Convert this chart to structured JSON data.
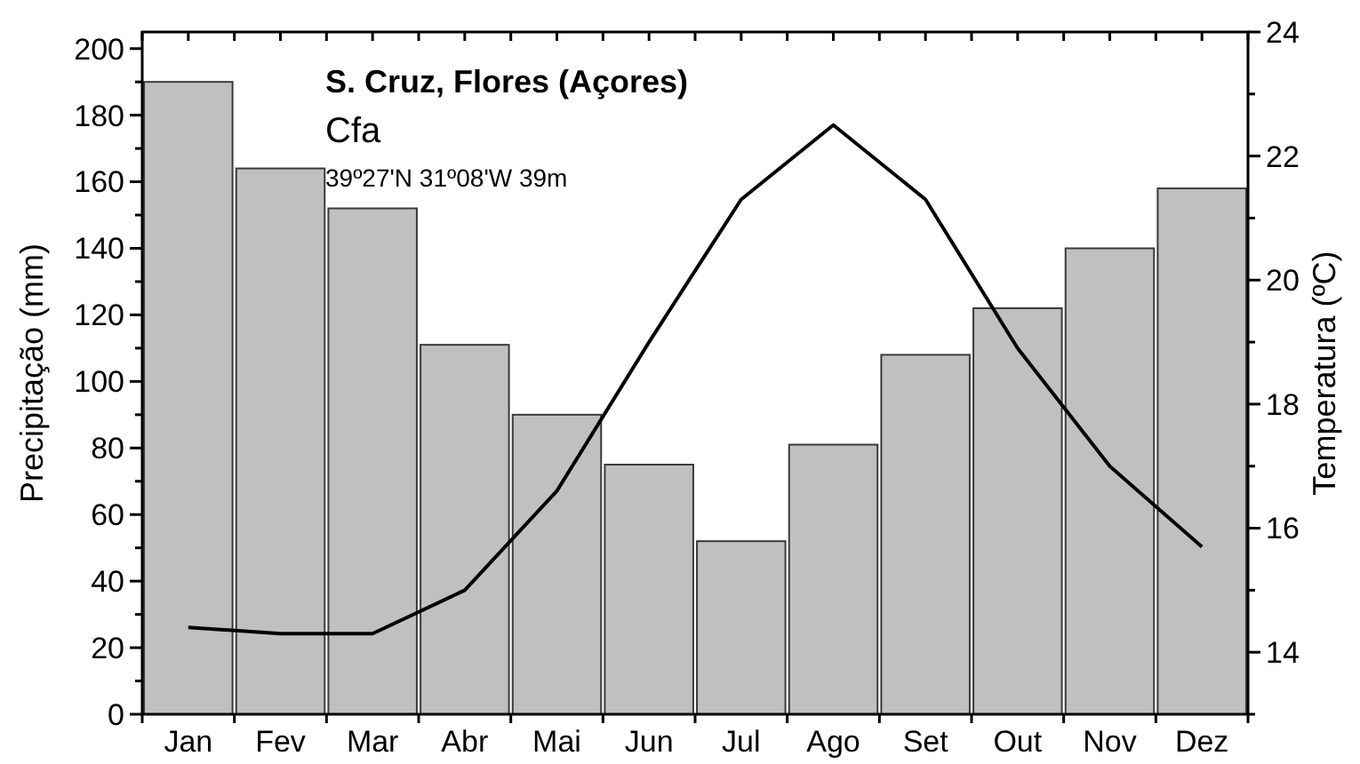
{
  "chart_data": {
    "type": "bar",
    "title": "S. Cruz, Flores (Açores)",
    "subtitle": "Cfa",
    "annotations": [
      "39º27'N 31º08'W 39m"
    ],
    "ylabel": "Precipitação (mm)",
    "y2label": "Temperatura (ºC)",
    "categories": [
      "Jan",
      "Fev",
      "Mar",
      "Abr",
      "Mai",
      "Jun",
      "Jul",
      "Ago",
      "Set",
      "Out",
      "Nov",
      "Dez"
    ],
    "series": [
      {
        "color": "#c0c0c0",
        "values": [
          190,
          164,
          152,
          111,
          90,
          75,
          52,
          81,
          108,
          122,
          140,
          158
        ]
      },
      {
        "type": "line",
        "axis": "y2",
        "color": "#000000",
        "values": [
          14.4,
          14.3,
          14.3,
          15.0,
          16.6,
          19.0,
          21.3,
          22.5,
          21.3,
          18.9,
          17.0,
          15.7
        ]
      }
    ],
    "ylim": [
      0,
      205
    ],
    "yticks": [
      0,
      {
        "value": 10,
        "label": null
      },
      20,
      {
        "value": 30,
        "label": null
      },
      40,
      {
        "value": 50,
        "label": null
      },
      60,
      {
        "value": 70,
        "label": null
      },
      80,
      {
        "value": 90,
        "label": null
      },
      100,
      {
        "value": 110,
        "label": null
      },
      120,
      {
        "value": 130,
        "label": null
      },
      140,
      {
        "value": 150,
        "label": null
      },
      160,
      {
        "value": 170,
        "label": null
      },
      180,
      {
        "value": 190,
        "label": null
      },
      200
    ],
    "y2lim": [
      13,
      24
    ],
    "y2ticks": [
      {
        "value": 13,
        "label": null
      },
      14,
      {
        "value": 15,
        "label": null
      },
      16,
      {
        "value": 17,
        "label": null
      },
      18,
      {
        "value": 19,
        "label": null
      },
      20,
      {
        "value": 21,
        "label": null
      },
      22,
      {
        "value": 23,
        "label": null
      },
      24
    ],
    "grid": false,
    "line_style": "solid"
  }
}
